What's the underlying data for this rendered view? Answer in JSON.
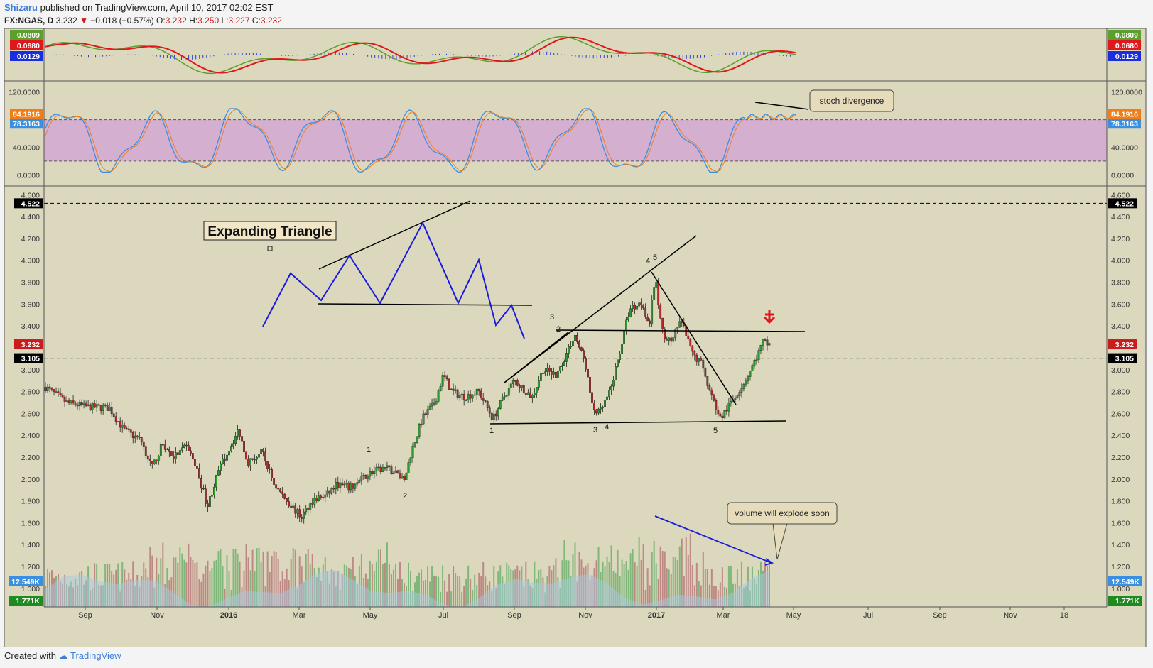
{
  "header": {
    "author": "Shizaru",
    "published_text": "published on TradingView.com, April 10, 2017 02:02 EST",
    "symbol": "FX:NGAS, D",
    "price": "3.232",
    "change": "−0.018 (−0.57%)",
    "o_label": "O:",
    "o": "3.232",
    "h_label": "H:",
    "h": "3.250",
    "l_label": "L:",
    "l": "3.227",
    "c_label": "C:",
    "c": "3.232"
  },
  "footer": {
    "created_with": "Created with",
    "brand": "TradingView"
  },
  "colors": {
    "background": "#dcd8bd",
    "up": "#2e9b2e",
    "down": "#b8272a",
    "stoch_band": "#d4a8d4",
    "trend_blue": "#1a1ae0"
  },
  "chart_data": [
    {
      "type": "line",
      "panel": "macd",
      "badges_left": [
        "0.0809",
        "0.0680",
        "0.0129"
      ],
      "badges_right": [
        "0.0809",
        "0.0680",
        "0.0129"
      ],
      "badge_colors": [
        "#5aa02c",
        "#e0171b",
        "#1a2ee0"
      ]
    },
    {
      "type": "line",
      "panel": "stochastic",
      "y_ticks": [
        "120.0000",
        "40.0000",
        "0.0000"
      ],
      "y_tick_values": [
        120,
        40,
        0
      ],
      "ylim": [
        -10,
        130
      ],
      "band": [
        20,
        80
      ],
      "badges": [
        "84.1916",
        "78.3163"
      ],
      "badge_values": [
        84.1916,
        78.3163
      ],
      "badge_colors": [
        "#f07d17",
        "#3a8fe0"
      ],
      "annotation": "stoch divergence"
    },
    {
      "type": "candlestick",
      "panel": "price",
      "y_ticks": [
        "4.600",
        "4.400",
        "4.200",
        "4.000",
        "3.800",
        "3.600",
        "3.400",
        "3.000",
        "2.800",
        "2.600",
        "2.400",
        "2.200",
        "2.000",
        "1.800",
        "1.600",
        "1.400",
        "1.200",
        "1.000"
      ],
      "y_tick_values": [
        4.6,
        4.4,
        4.2,
        4.0,
        3.8,
        3.6,
        3.4,
        3.0,
        2.8,
        2.6,
        2.4,
        2.2,
        2.0,
        1.8,
        1.6,
        1.4,
        1.2,
        1.0
      ],
      "ylim": [
        0.83,
        4.68
      ],
      "x_ticks": [
        "Sep",
        "Nov",
        "2016",
        "Mar",
        "May",
        "Jul",
        "Sep",
        "Nov",
        "2017",
        "Mar",
        "May",
        "Jul",
        "Sep",
        "Nov",
        "18"
      ],
      "bold_ticks": [
        "2016",
        "2017"
      ],
      "hlines": [
        {
          "value": 4.522,
          "label": "4.522"
        },
        {
          "value": 3.105,
          "label": "3.105"
        }
      ],
      "last_price": {
        "value": 3.232,
        "label": "3.232"
      },
      "annotation_title": "Expanding Triangle",
      "wave_labels": [
        "1",
        "2",
        "3",
        "2",
        "1",
        "3",
        "4",
        "4",
        "5",
        "5"
      ],
      "volume_badges": [
        "12.549K",
        "1.771K"
      ],
      "volume_annotation": "volume will explode soon"
    }
  ]
}
